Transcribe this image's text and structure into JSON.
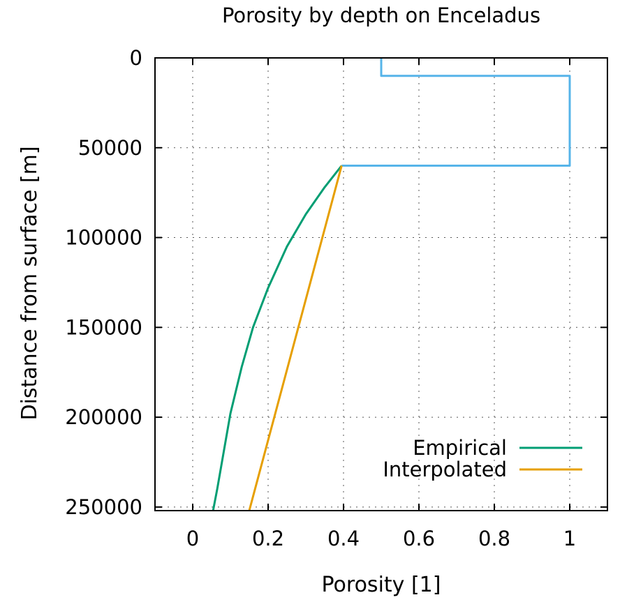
{
  "chart_data": {
    "type": "line",
    "title": "Porosity by depth on Enceladus",
    "xlabel": "Porosity [1]",
    "ylabel": "Distance from surface [m]",
    "xlim": [
      -0.1,
      1.1
    ],
    "ylim": [
      0,
      252000
    ],
    "y_reversed": true,
    "grid": true,
    "legend_position": "bottom-right",
    "x_ticks": [
      0,
      0.2,
      0.4,
      0.6,
      0.8,
      1
    ],
    "x_tick_labels": [
      "0",
      "0.2",
      "0.4",
      "0.6",
      "0.8",
      "1"
    ],
    "y_ticks": [
      0,
      50000,
      100000,
      150000,
      200000,
      250000
    ],
    "y_tick_labels": [
      "0",
      "50000",
      "100000",
      "150000",
      "200000",
      "250000"
    ],
    "series": [
      {
        "name": "",
        "color": "#56b4e9",
        "in_legend": false,
        "points": [
          [
            0.5,
            0
          ],
          [
            0.5,
            10000
          ],
          [
            1,
            10000
          ],
          [
            1,
            60000
          ],
          [
            0.395,
            60000
          ]
        ]
      },
      {
        "name": "Empirical",
        "color": "#009e73",
        "in_legend": true,
        "points": [
          [
            0.395,
            60000
          ],
          [
            0.35,
            72000
          ],
          [
            0.3,
            87000
          ],
          [
            0.25,
            105000
          ],
          [
            0.2,
            128000
          ],
          [
            0.16,
            150000
          ],
          [
            0.13,
            172000
          ],
          [
            0.1,
            198000
          ],
          [
            0.08,
            222000
          ],
          [
            0.065,
            240000
          ],
          [
            0.054,
            252000
          ]
        ]
      },
      {
        "name": "Interpolated",
        "color": "#e69f00",
        "in_legend": true,
        "points": [
          [
            0.395,
            60000
          ],
          [
            0.15,
            252000
          ]
        ]
      }
    ]
  }
}
